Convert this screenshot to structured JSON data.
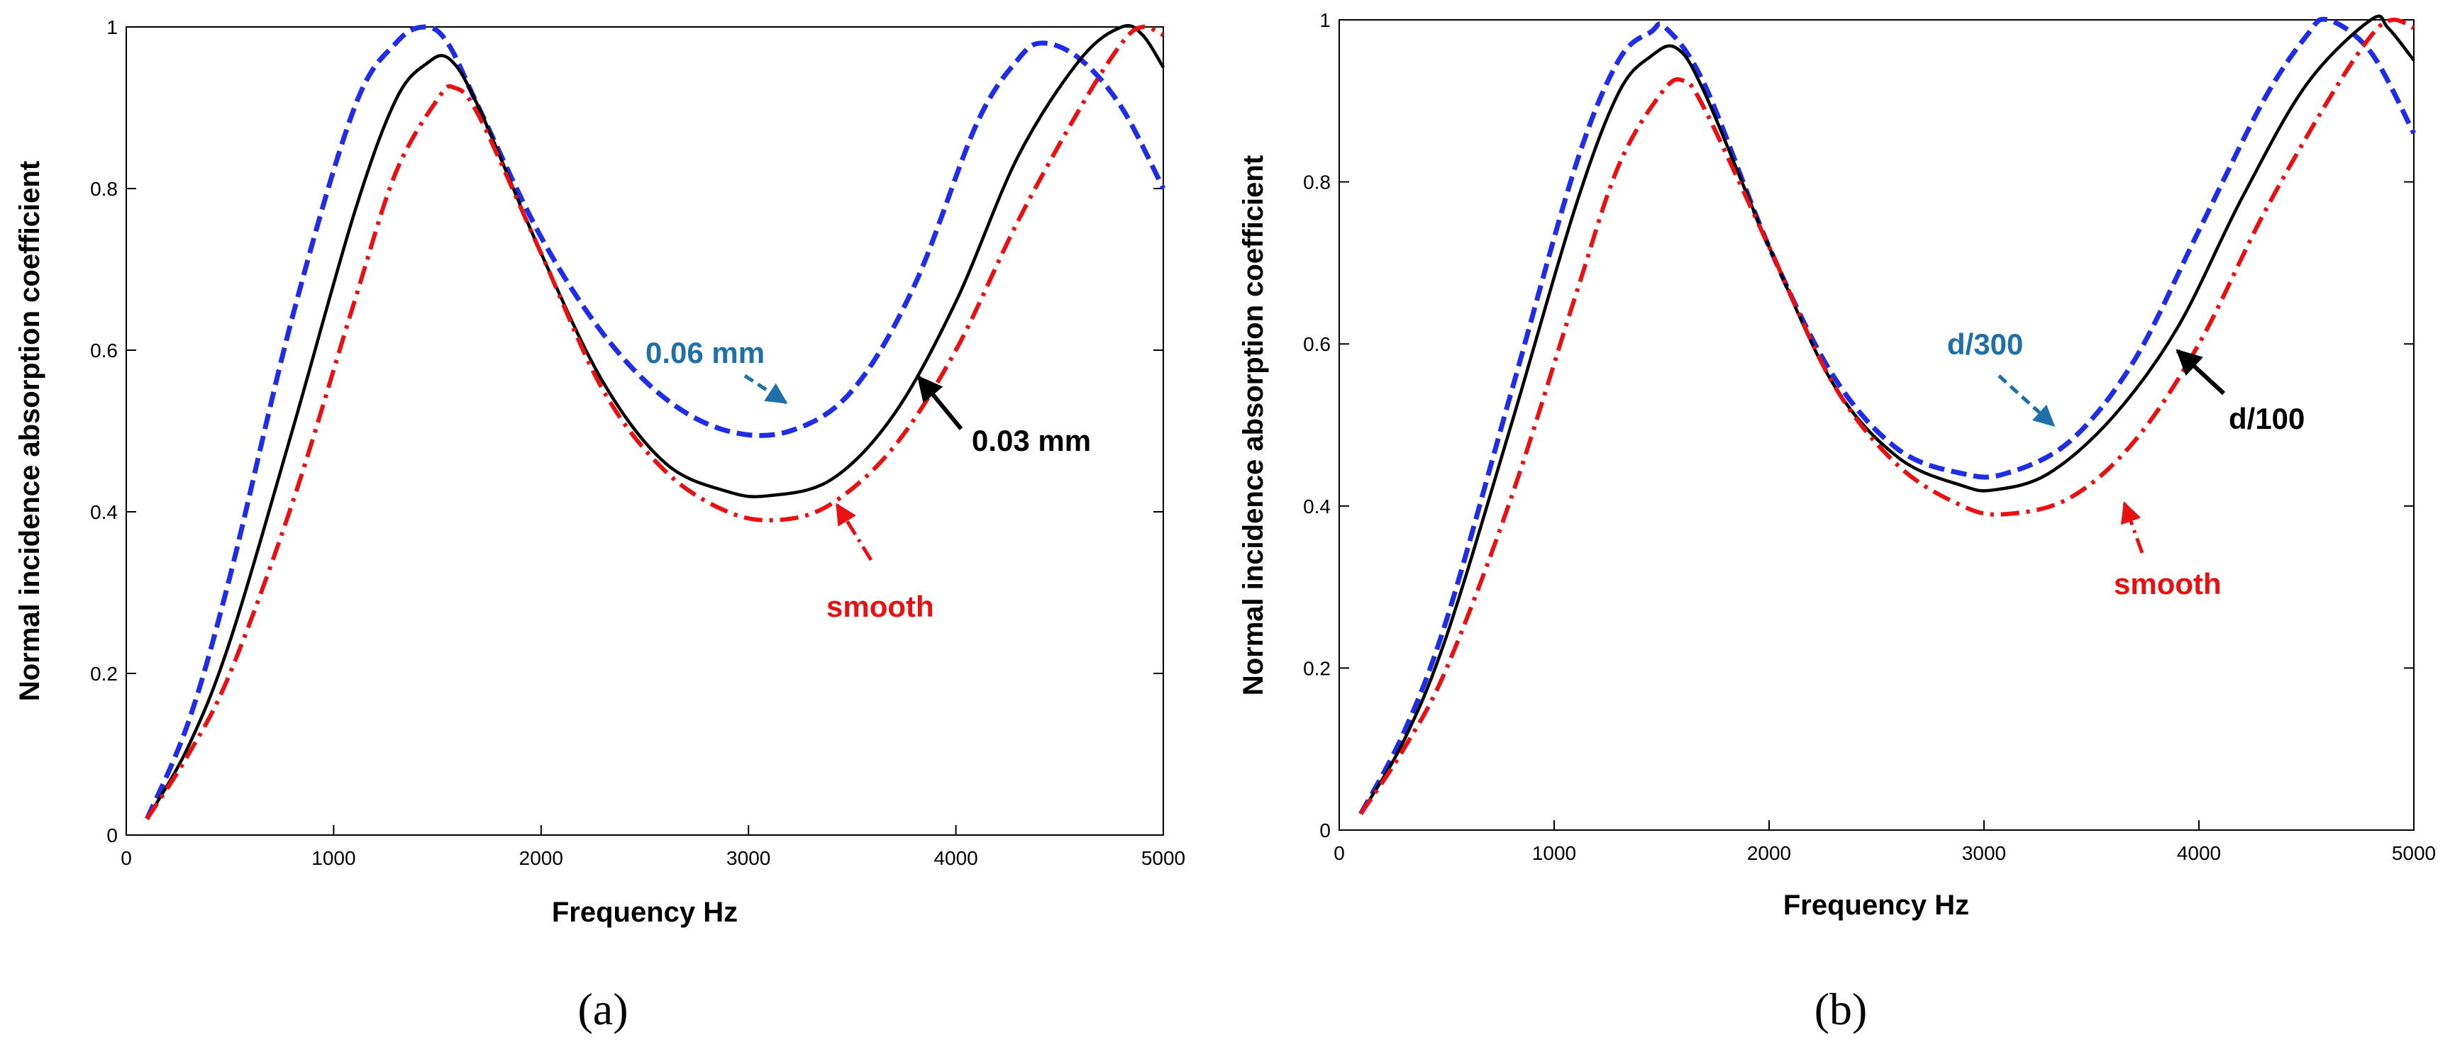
{
  "chart_data": [
    {
      "type": "line",
      "panel_label": "(a)",
      "xlabel": "Frequency Hz",
      "ylabel": "Normal incidence absorption coefficient",
      "xlim": [
        0,
        5000
      ],
      "ylim": [
        0,
        1
      ],
      "x_ticks": [
        "0",
        "1000",
        "2000",
        "3000",
        "4000",
        "5000"
      ],
      "y_ticks": [
        "0",
        "0.2",
        "0.4",
        "0.6",
        "0.8",
        "1"
      ],
      "legend": "none",
      "grid": false,
      "series": [
        {
          "label": "0.06 mm",
          "color": "#1f2ee6",
          "style": "dashed",
          "x": [
            100,
            300,
            500,
            800,
            1100,
            1300,
            1440,
            1550,
            1700,
            2000,
            2300,
            2600,
            2900,
            3200,
            3500,
            3800,
            4100,
            4300,
            4420,
            4600,
            4800,
            5000
          ],
          "y": [
            0.02,
            0.14,
            0.32,
            0.64,
            0.9,
            0.98,
            1.0,
            0.98,
            0.9,
            0.74,
            0.62,
            0.54,
            0.5,
            0.5,
            0.55,
            0.68,
            0.88,
            0.96,
            0.98,
            0.96,
            0.9,
            0.8
          ]
        },
        {
          "label": "0.03 mm",
          "color": "#000000",
          "style": "solid",
          "x": [
            100,
            300,
            500,
            800,
            1100,
            1300,
            1450,
            1560,
            1700,
            2000,
            2300,
            2600,
            2900,
            3100,
            3400,
            3700,
            4000,
            4300,
            4600,
            4800,
            4900,
            5000
          ],
          "y": [
            0.02,
            0.11,
            0.24,
            0.5,
            0.77,
            0.91,
            0.955,
            0.96,
            0.9,
            0.72,
            0.56,
            0.46,
            0.425,
            0.42,
            0.44,
            0.52,
            0.66,
            0.84,
            0.96,
            1.0,
            0.99,
            0.95
          ]
        },
        {
          "label": "smooth",
          "color": "#e81010",
          "style": "dash-dot",
          "x": [
            100,
            300,
            500,
            800,
            1100,
            1300,
            1500,
            1580,
            1700,
            2000,
            2300,
            2600,
            2900,
            3150,
            3400,
            3700,
            4000,
            4300,
            4600,
            4800,
            4900,
            5000
          ],
          "y": [
            0.02,
            0.1,
            0.2,
            0.41,
            0.66,
            0.82,
            0.91,
            0.925,
            0.89,
            0.72,
            0.55,
            0.45,
            0.4,
            0.39,
            0.41,
            0.48,
            0.6,
            0.76,
            0.9,
            0.98,
            1.0,
            0.99
          ]
        }
      ],
      "annotations": {
        "blue_label": "0.06 mm",
        "black_label": "0.03 mm",
        "red_label": "smooth"
      }
    },
    {
      "type": "line",
      "panel_label": "(b)",
      "xlabel": "Frequency Hz",
      "ylabel": "Normal incidence absorption coefficient",
      "xlim": [
        0,
        5000
      ],
      "ylim": [
        0,
        1
      ],
      "x_ticks": [
        "0",
        "1000",
        "2000",
        "3000",
        "4000",
        "5000"
      ],
      "y_ticks": [
        "0",
        "0.2",
        "0.4",
        "0.6",
        "0.8",
        "1"
      ],
      "legend": "none",
      "grid": false,
      "series": [
        {
          "label": "d/300",
          "color": "#1f2ee6",
          "style": "dashed",
          "x": [
            100,
            300,
            500,
            800,
            1100,
            1300,
            1450,
            1520,
            1700,
            2000,
            2300,
            2600,
            2900,
            3100,
            3400,
            3700,
            4000,
            4300,
            4500,
            4600,
            4800,
            5000
          ],
          "y": [
            0.02,
            0.12,
            0.26,
            0.54,
            0.82,
            0.95,
            0.985,
            0.99,
            0.92,
            0.72,
            0.56,
            0.47,
            0.44,
            0.44,
            0.48,
            0.58,
            0.74,
            0.9,
            0.98,
            1.0,
            0.96,
            0.86
          ]
        },
        {
          "label": "d/100",
          "color": "#000000",
          "style": "solid",
          "x": [
            100,
            300,
            500,
            800,
            1100,
            1300,
            1450,
            1570,
            1700,
            2000,
            2300,
            2600,
            2900,
            3050,
            3300,
            3600,
            3900,
            4200,
            4500,
            4800,
            4880,
            5000
          ],
          "y": [
            0.02,
            0.11,
            0.24,
            0.5,
            0.77,
            0.91,
            0.955,
            0.965,
            0.91,
            0.72,
            0.55,
            0.46,
            0.425,
            0.42,
            0.44,
            0.51,
            0.62,
            0.78,
            0.92,
            1.0,
            0.99,
            0.95
          ]
        },
        {
          "label": "smooth",
          "color": "#e81010",
          "style": "dash-dot",
          "x": [
            100,
            300,
            500,
            800,
            1100,
            1300,
            1500,
            1600,
            1700,
            2000,
            2300,
            2600,
            2900,
            3100,
            3400,
            3700,
            4000,
            4300,
            4600,
            4800,
            4900,
            5000
          ],
          "y": [
            0.02,
            0.1,
            0.2,
            0.41,
            0.66,
            0.82,
            0.91,
            0.925,
            0.89,
            0.72,
            0.55,
            0.45,
            0.4,
            0.39,
            0.41,
            0.48,
            0.6,
            0.76,
            0.9,
            0.98,
            1.0,
            0.99
          ]
        }
      ],
      "annotations": {
        "blue_label": "d/300",
        "black_label": "d/100",
        "red_label": "smooth"
      }
    }
  ]
}
